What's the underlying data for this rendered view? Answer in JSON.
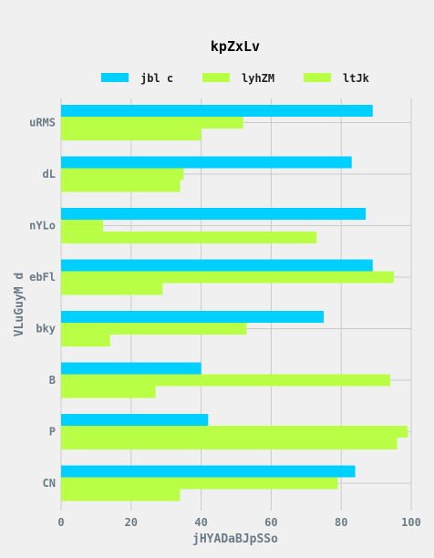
{
  "chart_data": {
    "type": "bar",
    "orientation": "horizontal",
    "title": "kpZxLv",
    "xlabel": "jHYADaBJpSSo",
    "ylabel": "VLuGuyM d",
    "categories": [
      "uRMS",
      "dL",
      "nYLo",
      "ebFl",
      "bky",
      "B",
      "P",
      "CN"
    ],
    "series": [
      {
        "name": "jbl c",
        "color": "#00d0ff",
        "values": [
          89,
          83,
          87,
          89,
          75,
          40,
          42,
          84
        ]
      },
      {
        "name": "lyhZM",
        "color": "#b8ff46",
        "values": [
          52,
          35,
          12,
          95,
          53,
          94,
          99,
          79
        ]
      },
      {
        "name": "ltJk",
        "color": "#b8ff46",
        "values": [
          40,
          34,
          73,
          29,
          14,
          27,
          96,
          34
        ]
      }
    ],
    "xlim": [
      0,
      100
    ],
    "xticks": [
      "0",
      "20",
      "40",
      "60",
      "80",
      "100"
    ],
    "grid": true,
    "legend_position": "top"
  }
}
